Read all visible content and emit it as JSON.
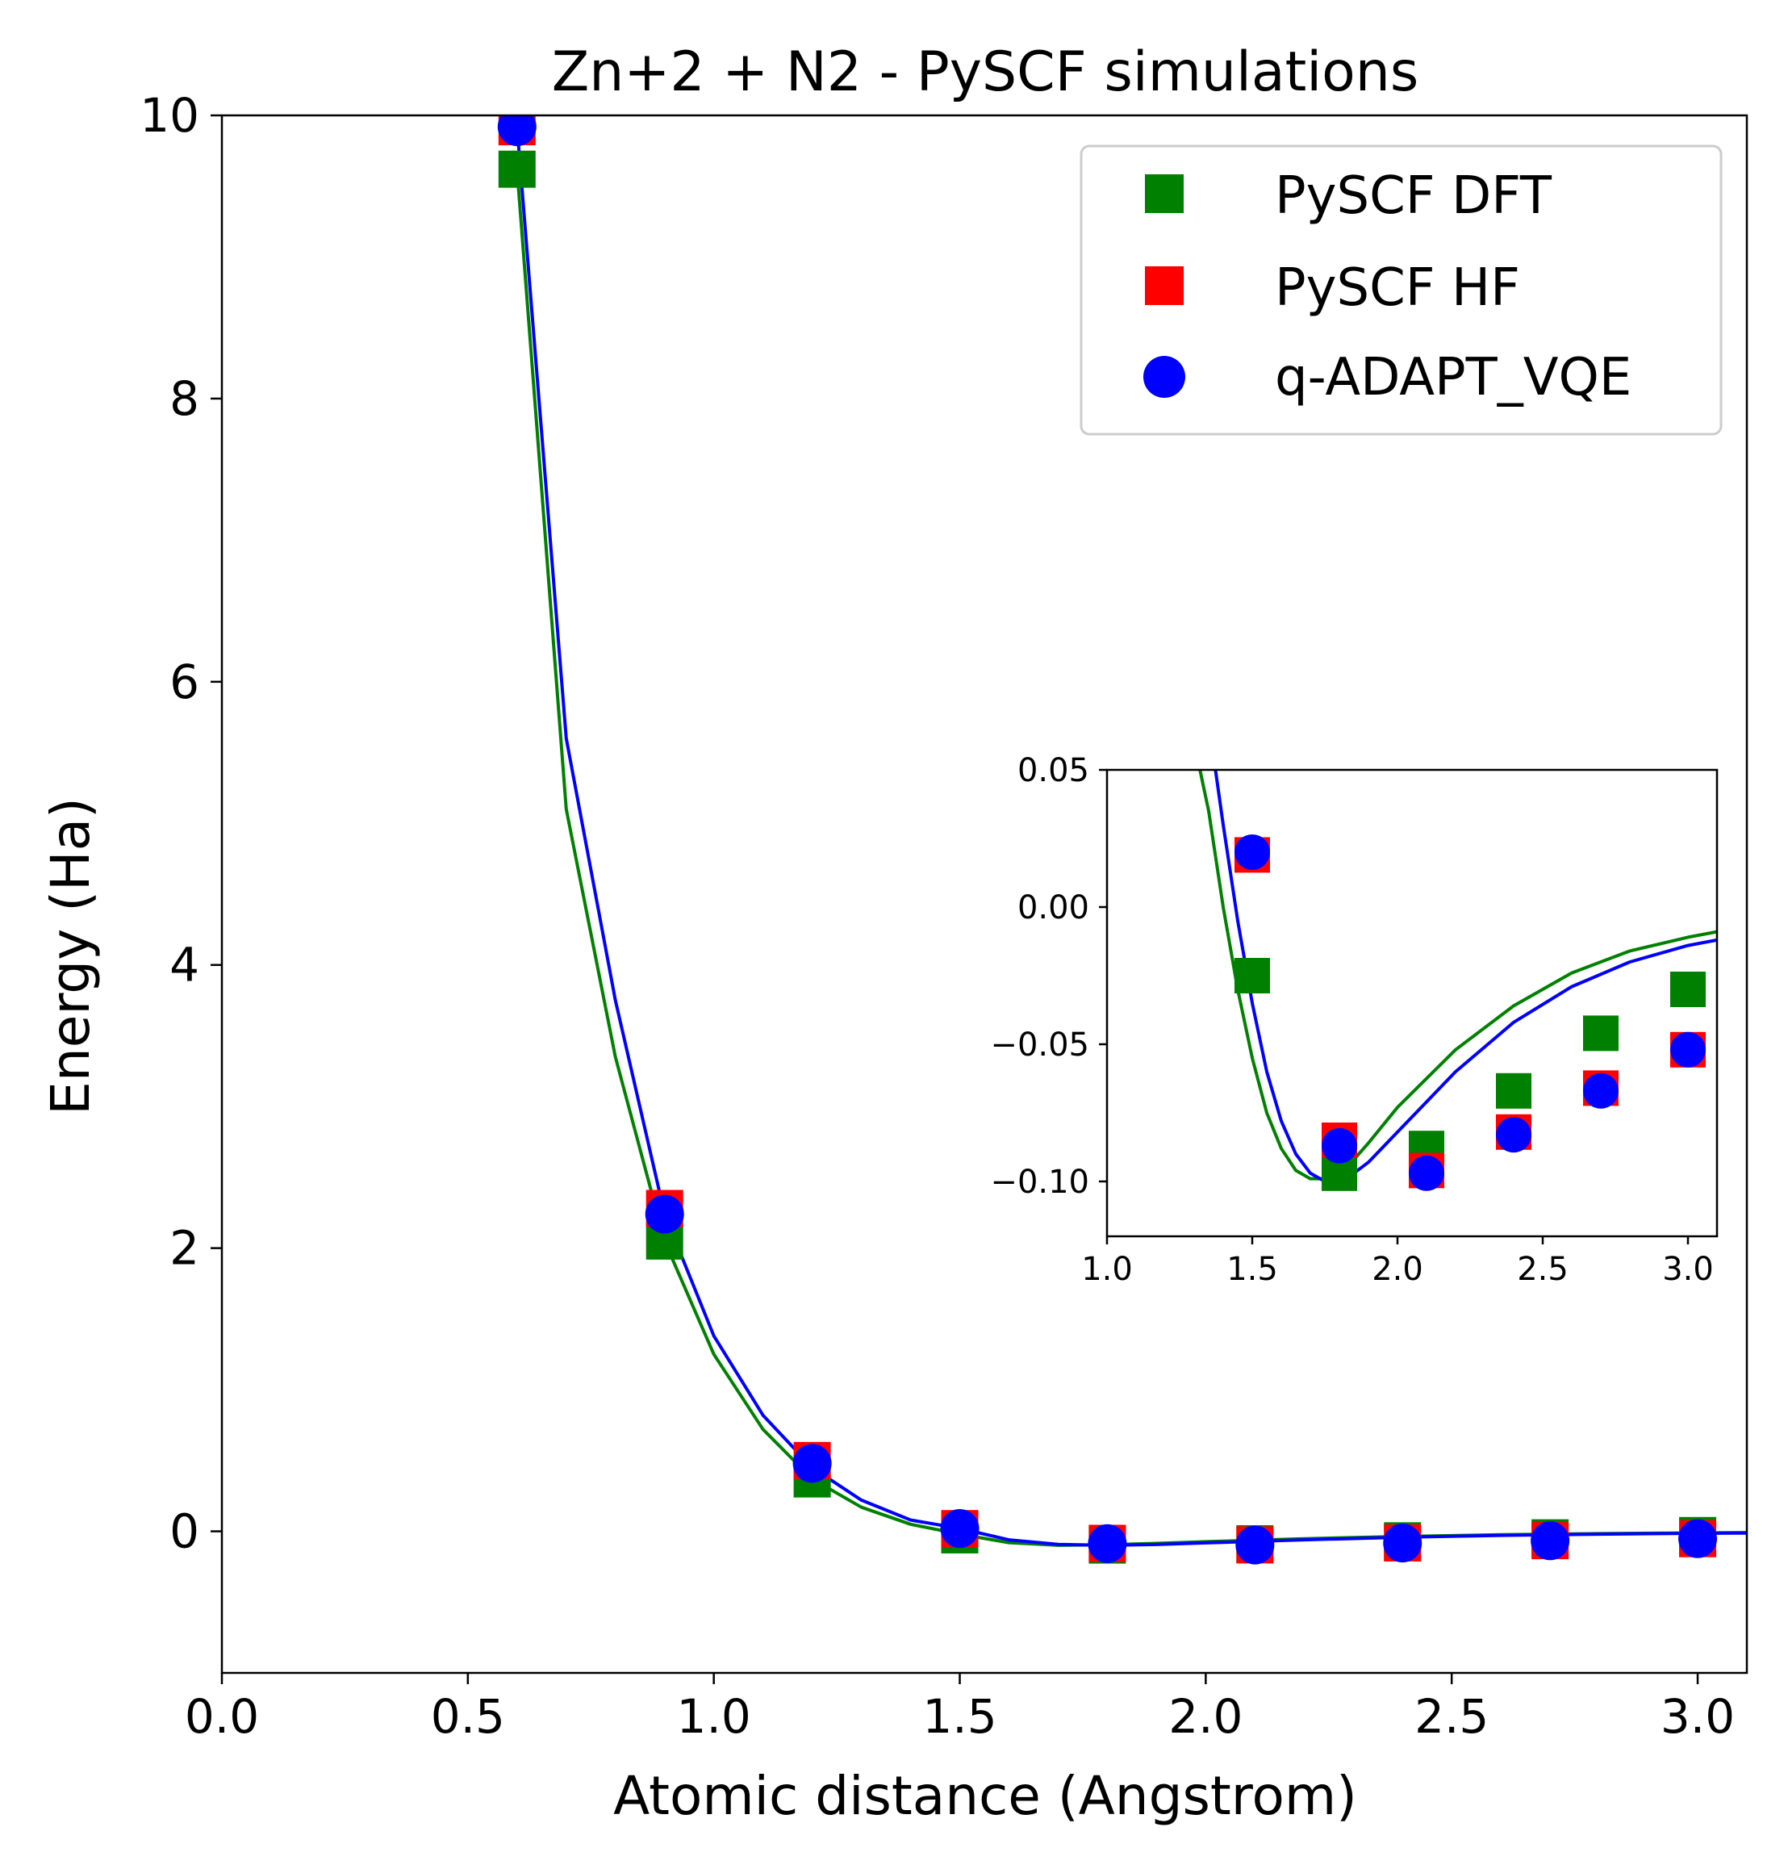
{
  "chart_data": [
    {
      "type": "scatter",
      "panel": "main",
      "title": "Zn+2 + N2 - PySCF simulations",
      "xlabel": "Atomic distance (Angstrom)",
      "ylabel": "Energy (Ha)",
      "xlim": [
        0.0,
        3.1
      ],
      "ylim": [
        -1.0,
        10.0
      ],
      "xticks": [
        "0.0",
        "0.5",
        "1.0",
        "1.5",
        "2.0",
        "2.5",
        "3.0"
      ],
      "yticks": [
        "0",
        "2",
        "4",
        "6",
        "8",
        "10"
      ],
      "grid": false,
      "legend_position": "top-right",
      "x": [
        0.6,
        0.9,
        1.2,
        1.5,
        1.8,
        2.1,
        2.4,
        2.7,
        3.0
      ],
      "series": [
        {
          "name": "PySCF DFT",
          "marker": "square",
          "color": "#008000",
          "values": [
            9.62,
            2.05,
            0.37,
            -0.025,
            -0.097,
            -0.088,
            -0.067,
            -0.046,
            -0.03
          ]
        },
        {
          "name": "PySCF HF",
          "marker": "square",
          "color": "#ff0000",
          "values": [
            9.92,
            2.28,
            0.5,
            0.019,
            -0.085,
            -0.096,
            -0.082,
            -0.066,
            -0.052
          ]
        },
        {
          "name": "q-ADAPT_VQE",
          "marker": "circle",
          "color": "#0000ff",
          "values": [
            9.92,
            2.24,
            0.48,
            0.02,
            -0.087,
            -0.097,
            -0.083,
            -0.067,
            -0.052
          ]
        }
      ],
      "fit_curves": [
        {
          "color": "#008000",
          "x": [
            0.6,
            0.7,
            0.8,
            0.9,
            1.0,
            1.1,
            1.2,
            1.3,
            1.4,
            1.5,
            1.6,
            1.7,
            1.8,
            1.9,
            2.0,
            2.2,
            2.4,
            2.6,
            2.8,
            3.0,
            3.1
          ],
          "y": [
            9.62,
            5.1,
            3.35,
            2.05,
            1.25,
            0.72,
            0.37,
            0.17,
            0.05,
            -0.02,
            -0.08,
            -0.099,
            -0.095,
            -0.085,
            -0.073,
            -0.052,
            -0.036,
            -0.024,
            -0.016,
            -0.011,
            -0.009
          ]
        },
        {
          "color": "#0000ff",
          "x": [
            0.6,
            0.7,
            0.8,
            0.9,
            1.0,
            1.1,
            1.2,
            1.3,
            1.4,
            1.5,
            1.6,
            1.7,
            1.8,
            1.9,
            2.0,
            2.2,
            2.4,
            2.6,
            2.8,
            3.0,
            3.1
          ],
          "y": [
            9.92,
            5.6,
            3.75,
            2.24,
            1.38,
            0.82,
            0.45,
            0.22,
            0.08,
            0.02,
            -0.06,
            -0.092,
            -0.099,
            -0.093,
            -0.082,
            -0.06,
            -0.042,
            -0.029,
            -0.02,
            -0.014,
            -0.012
          ]
        }
      ]
    },
    {
      "type": "scatter",
      "panel": "inset",
      "xlim": [
        1.0,
        3.1
      ],
      "ylim": [
        -0.12,
        0.05
      ],
      "xticks": [
        "1.0",
        "1.5",
        "2.0",
        "2.5",
        "3.0"
      ],
      "yticks": [
        "0.05",
        "0.00",
        "−0.05",
        "−0.10"
      ],
      "x": [
        1.5,
        1.8,
        2.1,
        2.4,
        2.7,
        3.0
      ],
      "series": [
        {
          "name": "PySCF DFT",
          "marker": "square",
          "color": "#008000",
          "values": [
            -0.025,
            -0.097,
            -0.088,
            -0.067,
            -0.046,
            -0.03
          ]
        },
        {
          "name": "PySCF HF",
          "marker": "square",
          "color": "#ff0000",
          "values": [
            0.019,
            -0.085,
            -0.096,
            -0.082,
            -0.066,
            -0.052
          ]
        },
        {
          "name": "q-ADAPT_VQE",
          "marker": "circle",
          "color": "#0000ff",
          "values": [
            0.02,
            -0.087,
            -0.097,
            -0.083,
            -0.067,
            -0.052
          ]
        }
      ],
      "fit_curves": [
        {
          "color": "#008000",
          "x": [
            1.3,
            1.35,
            1.4,
            1.45,
            1.5,
            1.55,
            1.6,
            1.65,
            1.7,
            1.75,
            1.8,
            1.85,
            1.9,
            2.0,
            2.2,
            2.4,
            2.6,
            2.8,
            3.0,
            3.1
          ],
          "y": [
            0.06,
            0.035,
            0.0,
            -0.03,
            -0.055,
            -0.075,
            -0.088,
            -0.096,
            -0.099,
            -0.099,
            -0.097,
            -0.092,
            -0.086,
            -0.073,
            -0.052,
            -0.036,
            -0.024,
            -0.016,
            -0.011,
            -0.009
          ]
        },
        {
          "color": "#0000ff",
          "x": [
            1.36,
            1.4,
            1.45,
            1.5,
            1.55,
            1.6,
            1.65,
            1.7,
            1.75,
            1.8,
            1.85,
            1.9,
            2.0,
            2.2,
            2.4,
            2.6,
            2.8,
            3.0,
            3.1
          ],
          "y": [
            0.06,
            0.03,
            -0.005,
            -0.035,
            -0.06,
            -0.078,
            -0.09,
            -0.097,
            -0.1,
            -0.099,
            -0.097,
            -0.093,
            -0.082,
            -0.06,
            -0.042,
            -0.029,
            -0.02,
            -0.014,
            -0.012
          ]
        }
      ]
    }
  ]
}
